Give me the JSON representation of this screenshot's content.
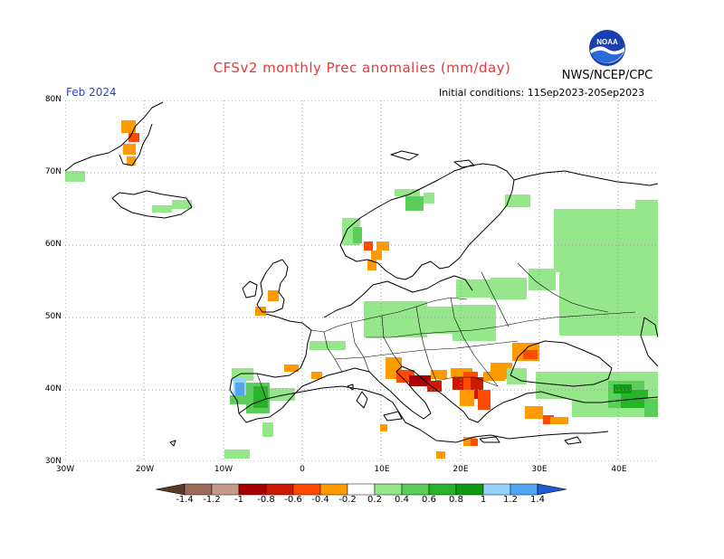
{
  "title": "CFSv2 monthly Prec anomalies (mm/day)",
  "agency": "NWS/NCEP/CPC",
  "month_label": "Feb 2024",
  "init_label": "Initial conditions: 11Sep2023-20Sep2023",
  "logo_text": "NOAA",
  "lat_labels": [
    "80N",
    "70N",
    "60N",
    "50N",
    "40N",
    "30N"
  ],
  "lon_labels": [
    "30W",
    "20W",
    "10W",
    "0",
    "10E",
    "20E",
    "30E",
    "40E"
  ],
  "colorbar": {
    "labels": [
      "-1.4",
      "-1.2",
      "-1",
      "-0.8",
      "-0.6",
      "-0.4",
      "-0.2",
      "0.2",
      "0.4",
      "0.6",
      "0.8",
      "1",
      "1.2",
      "1.4"
    ],
    "colors": [
      "#6e4a3a",
      "#9c6a58",
      "#c49a88",
      "#a80000",
      "#cc1a00",
      "#ff4a00",
      "#ff9a00",
      "#ffffff",
      "#96e68c",
      "#5acd5a",
      "#28b428",
      "#0f9b0f",
      "#96d2fa",
      "#50a5f5",
      "#1e6ee6"
    ],
    "end_low": "#5a3a28",
    "end_high": "#1e5ad2"
  },
  "map_colors": {
    "light_green": "#96e68c",
    "mid_green": "#5acd5a",
    "green": "#28b428",
    "dark_green": "#0f9b0f",
    "orange": "#ff9a00",
    "red_orange": "#ff4a00",
    "red": "#cc1a00",
    "dark_red": "#a80000",
    "light_blue": "#96d2fa",
    "blue": "#50a5f5"
  }
}
